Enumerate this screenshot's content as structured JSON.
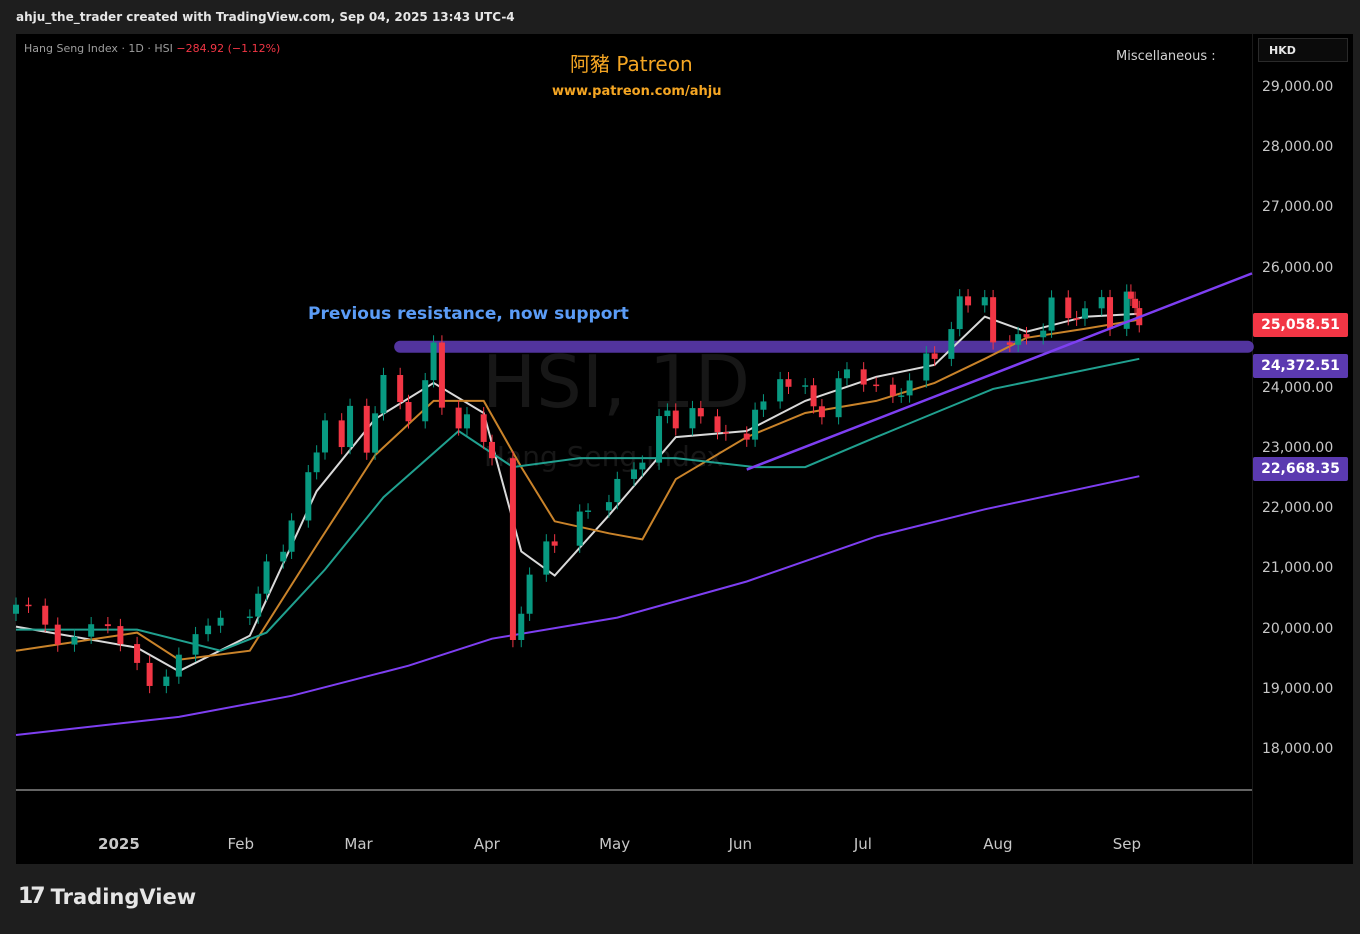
{
  "header": {
    "caption": "ahju_the_trader created with TradingView.com, Sep 04, 2025 13:43 UTC-4"
  },
  "legend": {
    "symbol": "Hang Seng Index · 1D · HSI",
    "change": "−284.92 (−1.12%)"
  },
  "branding": {
    "title": "阿豬 Patreon",
    "url": "www.patreon.com/ahju"
  },
  "misc_label": "Miscellaneous :",
  "currency": "HKD",
  "watermark": {
    "symbol": "HSI, 1D",
    "name": "Hang Seng Index"
  },
  "footer": {
    "logo_mark": "17",
    "logo_text": "TradingView"
  },
  "colors": {
    "up": "#089981",
    "down": "#f23645",
    "ma_white": "#d9d9d9",
    "ma_orange": "#c9832a",
    "ma_teal": "#20a08f",
    "ma_purple": "#7e3ff2",
    "zone": "#5b3ab0",
    "annotation": "#5b9cf6"
  },
  "chart_data": {
    "type": "candlestick",
    "title": "Hang Seng Index · 1D · HSI",
    "ylim": [
      17500,
      29500
    ],
    "y_ticks": [
      "29,000.00",
      "28,000.00",
      "27,000.00",
      "26,000.00",
      "25,000.00",
      "24,000.00",
      "23,000.00",
      "22,000.00",
      "21,000.00",
      "20,000.00",
      "19,000.00",
      "18,000.00"
    ],
    "y_tick_values": [
      29000,
      28000,
      27000,
      26000,
      25000,
      24000,
      23000,
      22000,
      21000,
      20000,
      19000,
      18000
    ],
    "x_ticks": [
      "2025",
      "Feb",
      "Mar",
      "Apr",
      "May",
      "Jun",
      "Jul",
      "Aug",
      "Sep"
    ],
    "x_tick_dates": [
      "2025-01-01",
      "2025-02-01",
      "2025-03-01",
      "2025-04-01",
      "2025-05-01",
      "2025-06-01",
      "2025-07-01",
      "2025-08-01",
      "2025-09-01"
    ],
    "x_range": [
      "2024-12-09",
      "2025-10-01"
    ],
    "price_tags": [
      {
        "label": "25,058.51",
        "value": 25058.51,
        "color": "#f23645"
      },
      {
        "label": "24,372.51",
        "value": 24372.51,
        "color": "#5b3ab0"
      },
      {
        "label": "22,668.35",
        "value": 22668.35,
        "color": "#5b3ab0"
      }
    ],
    "closes": [
      [
        "2024-12-09",
        20414
      ],
      [
        "2024-12-12",
        20397
      ],
      [
        "2024-12-16",
        20083
      ],
      [
        "2024-12-19",
        19752
      ],
      [
        "2024-12-23",
        19883
      ],
      [
        "2024-12-27",
        20090
      ],
      [
        "2024-12-31",
        20059
      ],
      [
        "2025-01-03",
        19760
      ],
      [
        "2025-01-07",
        19447
      ],
      [
        "2025-01-10",
        19064
      ],
      [
        "2025-01-14",
        19219
      ],
      [
        "2025-01-17",
        19584
      ],
      [
        "2025-01-21",
        19925
      ],
      [
        "2025-01-24",
        20066
      ],
      [
        "2025-01-27",
        20197
      ],
      [
        "2025-02-03",
        20217
      ],
      [
        "2025-02-05",
        20597
      ],
      [
        "2025-02-07",
        21133
      ],
      [
        "2025-02-11",
        21294
      ],
      [
        "2025-02-13",
        21814
      ],
      [
        "2025-02-17",
        22616
      ],
      [
        "2025-02-19",
        22944
      ],
      [
        "2025-02-21",
        23477
      ],
      [
        "2025-02-25",
        23034
      ],
      [
        "2025-02-27",
        23718
      ],
      [
        "2025-03-03",
        22941
      ],
      [
        "2025-03-05",
        23594
      ],
      [
        "2025-03-07",
        24231
      ],
      [
        "2025-03-11",
        23782
      ],
      [
        "2025-03-13",
        23462
      ],
      [
        "2025-03-17",
        24145
      ],
      [
        "2025-03-19",
        24771
      ],
      [
        "2025-03-21",
        23689
      ],
      [
        "2025-03-25",
        23344
      ],
      [
        "2025-03-27",
        23578
      ],
      [
        "2025-03-31",
        23119
      ],
      [
        "2025-04-02",
        22849
      ],
      [
        "2025-04-07",
        19828
      ],
      [
        "2025-04-09",
        20264
      ],
      [
        "2025-04-11",
        20914
      ],
      [
        "2025-04-15",
        21466
      ],
      [
        "2025-04-17",
        21395
      ],
      [
        "2025-04-23",
        21962
      ],
      [
        "2025-04-25",
        21980
      ],
      [
        "2025-04-30",
        22119
      ],
      [
        "2025-05-02",
        22504
      ],
      [
        "2025-05-06",
        22662
      ],
      [
        "2025-05-08",
        22775
      ],
      [
        "2025-05-12",
        23549
      ],
      [
        "2025-05-14",
        23640
      ],
      [
        "2025-05-16",
        23345
      ],
      [
        "2025-05-20",
        23681
      ],
      [
        "2025-05-22",
        23544
      ],
      [
        "2025-05-26",
        23282
      ],
      [
        "2025-05-28",
        23258
      ],
      [
        "2025-06-02",
        23157
      ],
      [
        "2025-06-04",
        23654
      ],
      [
        "2025-06-06",
        23792
      ],
      [
        "2025-06-10",
        24162
      ],
      [
        "2025-06-12",
        24035
      ],
      [
        "2025-06-16",
        24060
      ],
      [
        "2025-06-18",
        23711
      ],
      [
        "2025-06-20",
        23530
      ],
      [
        "2025-06-24",
        24177
      ],
      [
        "2025-06-26",
        24325
      ],
      [
        "2025-06-30",
        24072
      ],
      [
        "2025-07-03",
        24070
      ],
      [
        "2025-07-07",
        23887
      ],
      [
        "2025-07-09",
        23892
      ],
      [
        "2025-07-11",
        24140
      ],
      [
        "2025-07-15",
        24590
      ],
      [
        "2025-07-17",
        24499
      ],
      [
        "2025-07-21",
        24994
      ],
      [
        "2025-07-23",
        25538
      ],
      [
        "2025-07-25",
        25388
      ],
      [
        "2025-07-29",
        25524
      ],
      [
        "2025-07-31",
        24773
      ],
      [
        "2025-08-04",
        24733
      ],
      [
        "2025-08-06",
        24910
      ],
      [
        "2025-08-08",
        24858
      ],
      [
        "2025-08-12",
        24969
      ],
      [
        "2025-08-14",
        25519
      ],
      [
        "2025-08-18",
        25176
      ],
      [
        "2025-08-20",
        25166
      ],
      [
        "2025-08-22",
        25339
      ],
      [
        "2025-08-26",
        25525
      ],
      [
        "2025-08-28",
        24998
      ],
      [
        "2025-09-01",
        25617
      ],
      [
        "2025-09-02",
        25497
      ],
      [
        "2025-09-03",
        25343
      ],
      [
        "2025-09-04",
        25058.51
      ]
    ],
    "moving_averages": [
      {
        "color": "#d9d9d9",
        "points": [
          [
            "2024-12-09",
            20050
          ],
          [
            "2025-01-07",
            19700
          ],
          [
            "2025-01-17",
            19310
          ],
          [
            "2025-02-03",
            19900
          ],
          [
            "2025-02-19",
            22300
          ],
          [
            "2025-03-05",
            23500
          ],
          [
            "2025-03-19",
            24100
          ],
          [
            "2025-03-31",
            23600
          ],
          [
            "2025-04-09",
            21300
          ],
          [
            "2025-04-17",
            20900
          ],
          [
            "2025-04-30",
            21900
          ],
          [
            "2025-05-16",
            23200
          ],
          [
            "2025-06-02",
            23300
          ],
          [
            "2025-06-16",
            23800
          ],
          [
            "2025-07-03",
            24200
          ],
          [
            "2025-07-17",
            24400
          ],
          [
            "2025-07-29",
            25200
          ],
          [
            "2025-08-08",
            24950
          ],
          [
            "2025-08-22",
            25200
          ],
          [
            "2025-09-04",
            25250
          ]
        ]
      },
      {
        "color": "#c9832a",
        "points": [
          [
            "2024-12-09",
            19650
          ],
          [
            "2025-01-07",
            19950
          ],
          [
            "2025-01-17",
            19500
          ],
          [
            "2025-02-03",
            19650
          ],
          [
            "2025-02-19",
            21400
          ],
          [
            "2025-03-05",
            22900
          ],
          [
            "2025-03-19",
            23800
          ],
          [
            "2025-03-31",
            23800
          ],
          [
            "2025-04-09",
            22700
          ],
          [
            "2025-04-17",
            21800
          ],
          [
            "2025-04-30",
            21600
          ],
          [
            "2025-05-08",
            21500
          ],
          [
            "2025-05-16",
            22500
          ],
          [
            "2025-06-02",
            23200
          ],
          [
            "2025-06-16",
            23600
          ],
          [
            "2025-07-03",
            23800
          ],
          [
            "2025-07-17",
            24100
          ],
          [
            "2025-07-29",
            24500
          ],
          [
            "2025-08-08",
            24850
          ],
          [
            "2025-08-22",
            25000
          ],
          [
            "2025-09-04",
            25150
          ]
        ]
      },
      {
        "color": "#20a08f",
        "points": [
          [
            "2024-12-09",
            20000
          ],
          [
            "2025-01-07",
            20000
          ],
          [
            "2025-01-27",
            19650
          ],
          [
            "2025-02-07",
            19950
          ],
          [
            "2025-02-21",
            21000
          ],
          [
            "2025-03-07",
            22200
          ],
          [
            "2025-03-25",
            23300
          ],
          [
            "2025-04-07",
            22700
          ],
          [
            "2025-04-23",
            22850
          ],
          [
            "2025-05-16",
            22850
          ],
          [
            "2025-06-04",
            22700
          ],
          [
            "2025-06-16",
            22700
          ],
          [
            "2025-07-03",
            23200
          ],
          [
            "2025-07-17",
            23600
          ],
          [
            "2025-07-31",
            24000
          ],
          [
            "2025-08-14",
            24200
          ],
          [
            "2025-09-04",
            24500
          ]
        ]
      },
      {
        "color": "#7e3ff2",
        "points": [
          [
            "2024-12-09",
            18250
          ],
          [
            "2025-01-17",
            18550
          ],
          [
            "2025-02-13",
            18900
          ],
          [
            "2025-03-13",
            19400
          ],
          [
            "2025-04-02",
            19850
          ],
          [
            "2025-05-02",
            20200
          ],
          [
            "2025-06-02",
            20800
          ],
          [
            "2025-07-03",
            21550
          ],
          [
            "2025-07-29",
            22000
          ],
          [
            "2025-09-04",
            22550
          ]
        ]
      }
    ],
    "trendline": [
      [
        "2025-06-02",
        22660
      ],
      [
        "2025-10-01",
        25920
      ]
    ],
    "support_zone": {
      "from": "2025-03-11",
      "to": "2025-09-30",
      "value": 24700
    },
    "annotations": [
      "Previous resistance, now support"
    ]
  }
}
